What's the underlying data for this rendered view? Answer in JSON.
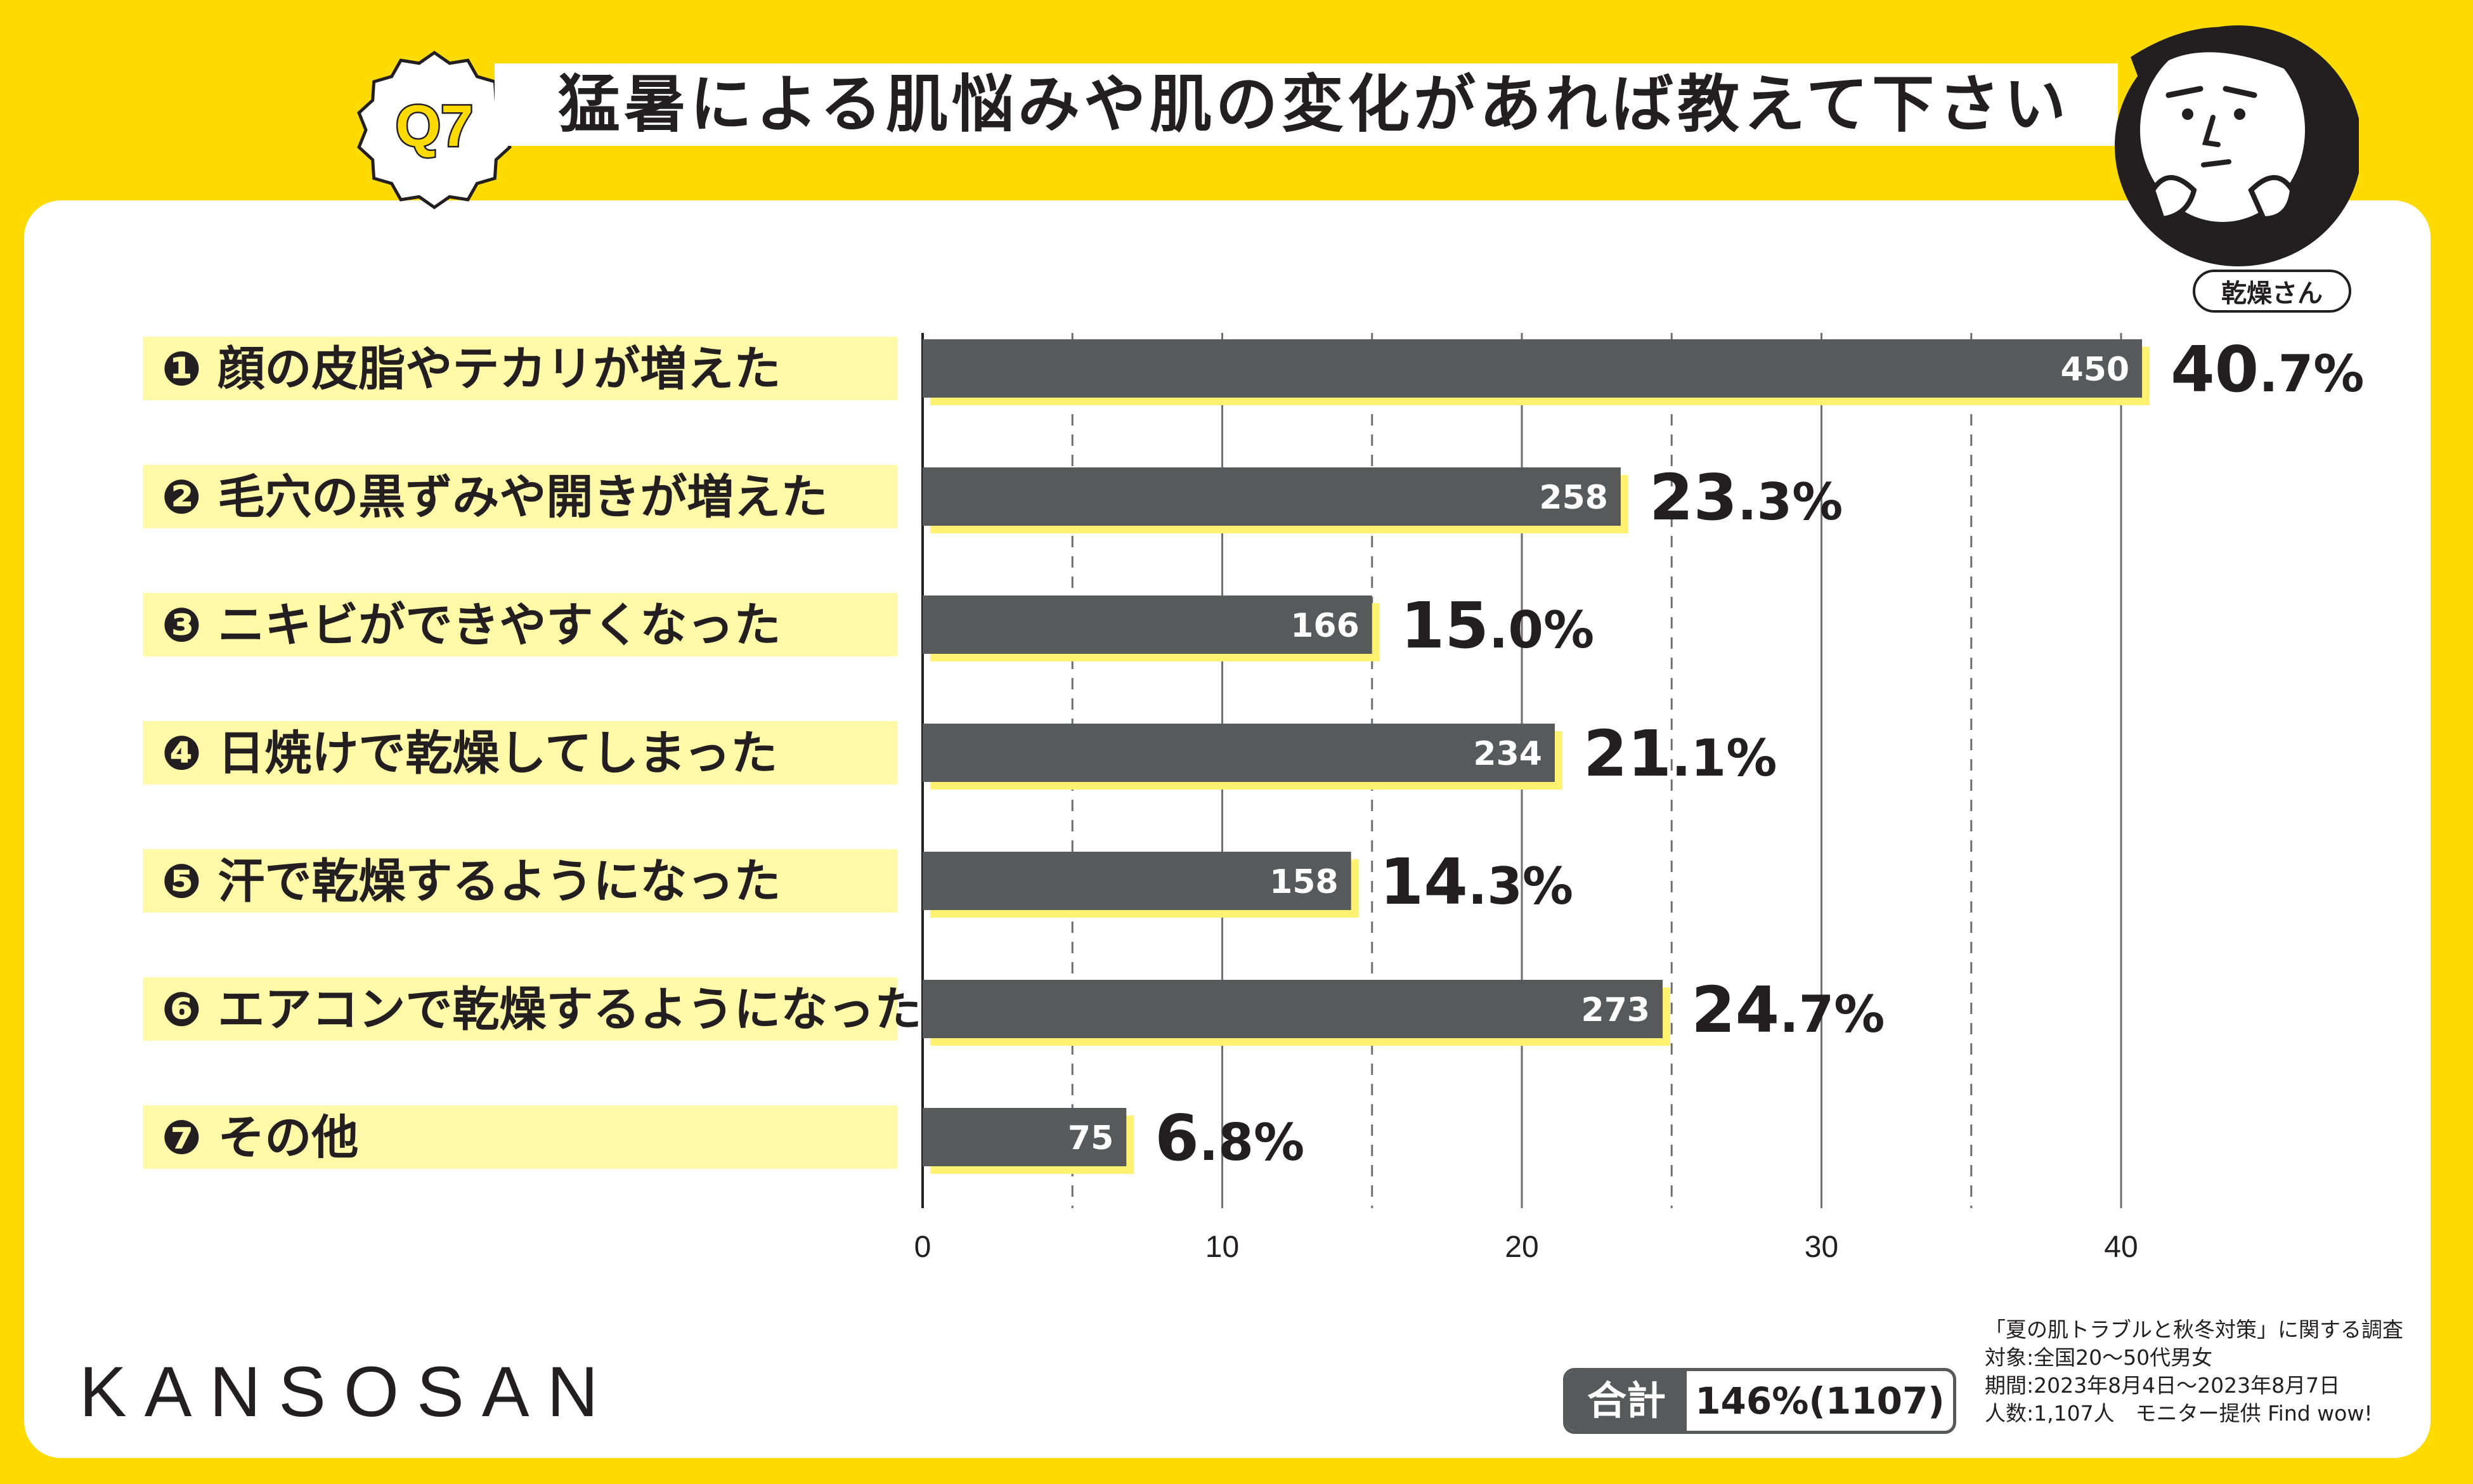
{
  "header": {
    "badge": "Q7",
    "title": "猛暑による肌悩みや肌の変化があれば教えて下さい",
    "mascot_label": "乾燥さん"
  },
  "chart_data": {
    "type": "bar",
    "orientation": "horizontal",
    "categories": [
      "❶ 顔の皮脂やテカリが増えた",
      "❷ 毛穴の黒ずみや開きが増えた",
      "❸ ニキビができやすくなった",
      "❹ 日焼けで乾燥してしまった",
      "❺ 汗で乾燥するようになった",
      "❻ エアコンで乾燥するようになった",
      "❼ その他"
    ],
    "values": [
      40.7,
      23.3,
      15.0,
      21.1,
      14.3,
      24.7,
      6.8
    ],
    "counts": [
      450,
      258,
      166,
      234,
      158,
      273,
      75
    ],
    "percent_labels": [
      {
        "int": "40",
        "dec": ".7%"
      },
      {
        "int": "23",
        "dec": ".3%"
      },
      {
        "int": "15",
        "dec": ".0%"
      },
      {
        "int": "21",
        "dec": ".1%"
      },
      {
        "int": "14",
        "dec": ".3%"
      },
      {
        "int": "24",
        "dec": ".7%"
      },
      {
        "int": "6",
        "dec": ".8%"
      }
    ],
    "xlim": [
      0,
      40
    ],
    "xticks": [
      0,
      10,
      20,
      30,
      40
    ],
    "gridlines_solid": [
      10,
      20,
      30,
      40
    ],
    "gridlines_dashed": [
      5,
      15,
      25,
      35
    ],
    "bar_color": "#58595b",
    "highlight_color": "#FFF270",
    "label_band_color": "#FFF9A8"
  },
  "footer": {
    "brand": "KANSOSAN",
    "total_label": "合計",
    "total_value": "146%(1107)",
    "source_lines": [
      "「夏の肌トラブルと秋冬対策」に関する調査",
      "対象:全国20～50代男女",
      "期間:2023年8月4日～2023年8月7日",
      "人数:1,107人　モニター提供 Find wow!"
    ]
  },
  "colors": {
    "background": "#FDDB00",
    "text": "#231f20"
  }
}
